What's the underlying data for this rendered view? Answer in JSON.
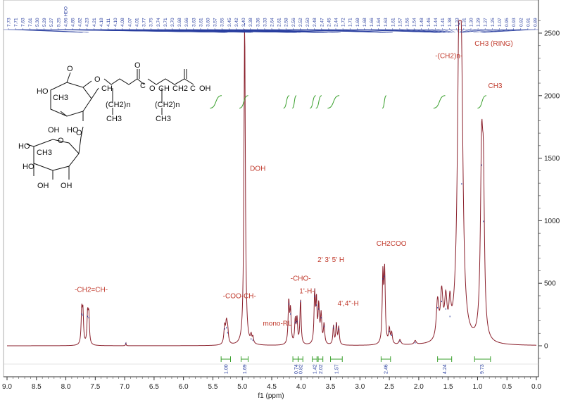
{
  "chart_data": {
    "type": "line",
    "xlabel": "f1 (ppm)",
    "xlim": [
      9.0,
      0.0
    ],
    "ylim": [
      -100,
      2600
    ],
    "x_ticks": [
      "9.0",
      "8.5",
      "8.0",
      "7.5",
      "7.0",
      "6.5",
      "6.0",
      "5.5",
      "5.0",
      "4.5",
      "4.0",
      "3.5",
      "3.0",
      "2.5",
      "2.0",
      "1.5",
      "1.0",
      "0.5",
      "0.0"
    ],
    "y_ticks": [
      "0",
      "500",
      "1000",
      "1500",
      "2000",
      "2500"
    ],
    "peak_labels": [
      "7.73",
      "7.71",
      "7.63",
      "7.61",
      "5.30",
      "5.29",
      "5.27",
      "5.25",
      "4.96 HDO",
      "4.85",
      "4.82",
      "4.23",
      "4.21",
      "4.18",
      "4.11",
      "4.10",
      "4.08",
      "4.07",
      "4.01",
      "3.77",
      "3.75",
      "3.74",
      "3.71",
      "3.70",
      "3.68",
      "3.66",
      "3.63",
      "3.61",
      "3.60",
      "3.57",
      "3.55",
      "3.45",
      "3.42",
      "3.40",
      "3.38",
      "3.36",
      "3.33",
      "2.64",
      "2.61",
      "2.58",
      "2.56",
      "2.52",
      "2.50",
      "2.48",
      "2.47",
      "2.45",
      "2.44",
      "1.72",
      "1.71",
      "1.69",
      "1.68",
      "1.66",
      "1.64",
      "1.63",
      "1.61",
      "1.57",
      "1.56",
      "1.54",
      "1.48",
      "1.46",
      "1.44",
      "1.41",
      "1.38",
      "1.33",
      "1.31",
      "1.30",
      "1.29",
      "1.27",
      "1.25",
      "1.07",
      "0.95",
      "0.93",
      "0.92",
      "0.91",
      "0.89"
    ],
    "annotations": [
      {
        "text": "-CH2=CH-",
        "x": 7.85,
        "y": 430
      },
      {
        "text": "-COO-CH-",
        "x": 5.33,
        "y": 380
      },
      {
        "text": "DOH",
        "x": 4.87,
        "y": 1400
      },
      {
        "text": "mono-RL",
        "x": 4.65,
        "y": 160
      },
      {
        "text": "-CHO-",
        "x": 4.18,
        "y": 520
      },
      {
        "text": "1'-H-",
        "x": 4.03,
        "y": 420
      },
      {
        "text": "2' 3' 5' H",
        "x": 3.72,
        "y": 670
      },
      {
        "text": "4',4''-H",
        "x": 3.38,
        "y": 320
      },
      {
        "text": "CH2COO",
        "x": 2.72,
        "y": 800
      },
      {
        "text": "-(CH2)n-",
        "x": 1.72,
        "y": 2300
      },
      {
        "text": "CH3 (RING)",
        "x": 1.05,
        "y": 2400
      },
      {
        "text": "CH3",
        "x": 0.82,
        "y": 2060
      }
    ],
    "integrals": [
      {
        "value": "1.00",
        "center": 5.28,
        "from": 5.36,
        "to": 5.2
      },
      {
        "value": "1.69",
        "center": 4.96,
        "from": 5.02,
        "to": 4.9
      },
      {
        "value": "0.74",
        "center": 4.09,
        "from": 4.14,
        "to": 4.05
      },
      {
        "value": "0.82",
        "center": 4.01,
        "from": 4.05,
        "to": 3.97
      },
      {
        "value": "1.42",
        "center": 3.77,
        "from": 3.81,
        "to": 3.73
      },
      {
        "value": "2.02",
        "center": 3.67,
        "from": 3.71,
        "to": 3.63
      },
      {
        "value": "1.57",
        "center": 3.4,
        "from": 3.5,
        "to": 3.3
      },
      {
        "value": "2.46",
        "center": 2.56,
        "from": 2.64,
        "to": 2.48
      },
      {
        "value": "4.24",
        "center": 1.56,
        "from": 1.68,
        "to": 1.44
      },
      {
        "value": "9.73",
        "center": 0.93,
        "from": 1.05,
        "to": 0.78
      }
    ],
    "integral_curves": [
      {
        "from": 5.55,
        "to": 5.35
      },
      {
        "from": 5.05,
        "to": 4.9
      },
      {
        "from": 4.3,
        "to": 4.2
      },
      {
        "from": 4.15,
        "to": 4.08
      },
      {
        "from": 3.85,
        "to": 3.75
      },
      {
        "from": 3.75,
        "to": 3.65
      },
      {
        "from": 3.55,
        "to": 3.35
      },
      {
        "from": 2.62,
        "to": 2.55
      },
      {
        "from": 1.75,
        "to": 1.55
      },
      {
        "from": 1.0,
        "to": 0.85
      }
    ],
    "series": [
      {
        "peaks": [
          {
            "x": 7.73,
            "h": 260,
            "w": 0.012
          },
          {
            "x": 7.71,
            "h": 250,
            "w": 0.012
          },
          {
            "x": 7.63,
            "h": 240,
            "w": 0.012
          },
          {
            "x": 7.61,
            "h": 230,
            "w": 0.012
          },
          {
            "x": 6.98,
            "h": 25,
            "w": 0.005
          },
          {
            "x": 5.3,
            "h": 140,
            "w": 0.015
          },
          {
            "x": 5.27,
            "h": 150,
            "w": 0.015
          },
          {
            "x": 5.25,
            "h": 110,
            "w": 0.015
          },
          {
            "x": 4.96,
            "h": 2580,
            "w": 0.014
          },
          {
            "x": 4.85,
            "h": 60,
            "w": 0.012
          },
          {
            "x": 4.82,
            "h": 50,
            "w": 0.012
          },
          {
            "x": 4.21,
            "h": 340,
            "w": 0.013
          },
          {
            "x": 4.18,
            "h": 260,
            "w": 0.013
          },
          {
            "x": 4.1,
            "h": 190,
            "w": 0.012
          },
          {
            "x": 4.07,
            "h": 200,
            "w": 0.012
          },
          {
            "x": 4.01,
            "h": 360,
            "w": 0.012
          },
          {
            "x": 3.77,
            "h": 400,
            "w": 0.012
          },
          {
            "x": 3.74,
            "h": 330,
            "w": 0.012
          },
          {
            "x": 3.7,
            "h": 300,
            "w": 0.013
          },
          {
            "x": 3.66,
            "h": 230,
            "w": 0.013
          },
          {
            "x": 3.61,
            "h": 160,
            "w": 0.013
          },
          {
            "x": 3.45,
            "h": 150,
            "w": 0.012
          },
          {
            "x": 3.4,
            "h": 170,
            "w": 0.012
          },
          {
            "x": 3.36,
            "h": 140,
            "w": 0.012
          },
          {
            "x": 2.61,
            "h": 540,
            "w": 0.013
          },
          {
            "x": 2.58,
            "h": 560,
            "w": 0.013
          },
          {
            "x": 2.5,
            "h": 120,
            "w": 0.014
          },
          {
            "x": 2.46,
            "h": 90,
            "w": 0.014
          },
          {
            "x": 2.32,
            "h": 40,
            "w": 0.02
          },
          {
            "x": 2.06,
            "h": 30,
            "w": 0.02
          },
          {
            "x": 1.68,
            "h": 310,
            "w": 0.025
          },
          {
            "x": 1.61,
            "h": 360,
            "w": 0.025
          },
          {
            "x": 1.54,
            "h": 300,
            "w": 0.025
          },
          {
            "x": 1.47,
            "h": 240,
            "w": 0.02
          },
          {
            "x": 1.31,
            "h": 2580,
            "w": 0.035
          },
          {
            "x": 1.27,
            "h": 1300,
            "w": 0.03
          },
          {
            "x": 0.93,
            "h": 1450,
            "w": 0.025
          },
          {
            "x": 0.9,
            "h": 1000,
            "w": 0.02
          }
        ]
      }
    ]
  },
  "molecule": {
    "labels": [
      "HO",
      "OH",
      "CH3",
      "O",
      "O",
      "CH",
      "O",
      "C",
      "O",
      "CH",
      "CH2",
      "C",
      "OH",
      "(CH2)n",
      "(CH2)n",
      "CH3",
      "CH3",
      "HO",
      "O",
      "HO",
      "O",
      "CH3",
      "HO",
      "OH",
      "OH"
    ]
  },
  "colors": {
    "spectrum": "#8a1f2b",
    "peak_labels": "#2a3fa0",
    "annotations": "#c0392b",
    "integral": "#3aa02d"
  }
}
